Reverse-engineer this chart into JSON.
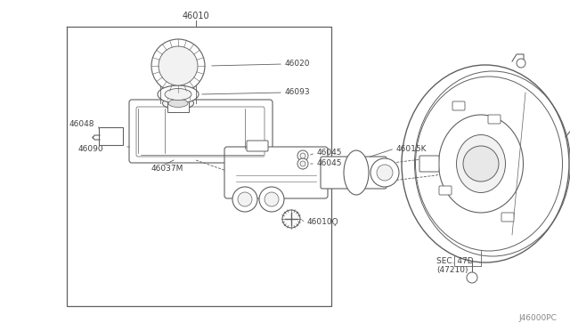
{
  "bg_color": "#ffffff",
  "lc": "#606060",
  "tc": "#404040",
  "fig_width": 6.4,
  "fig_height": 3.72,
  "title_code": "46010",
  "footer_code": "J46000PC",
  "sec_label": "SEC. 47D\n(47210)",
  "label_46020": "46020",
  "label_46093": "46093",
  "label_46048": "46048",
  "label_46090": "46090",
  "label_46037M": "46037M",
  "label_46045a": "46045",
  "label_46045b": "46045",
  "label_46015K": "46015K",
  "label_46010D": "46010Ϙ"
}
